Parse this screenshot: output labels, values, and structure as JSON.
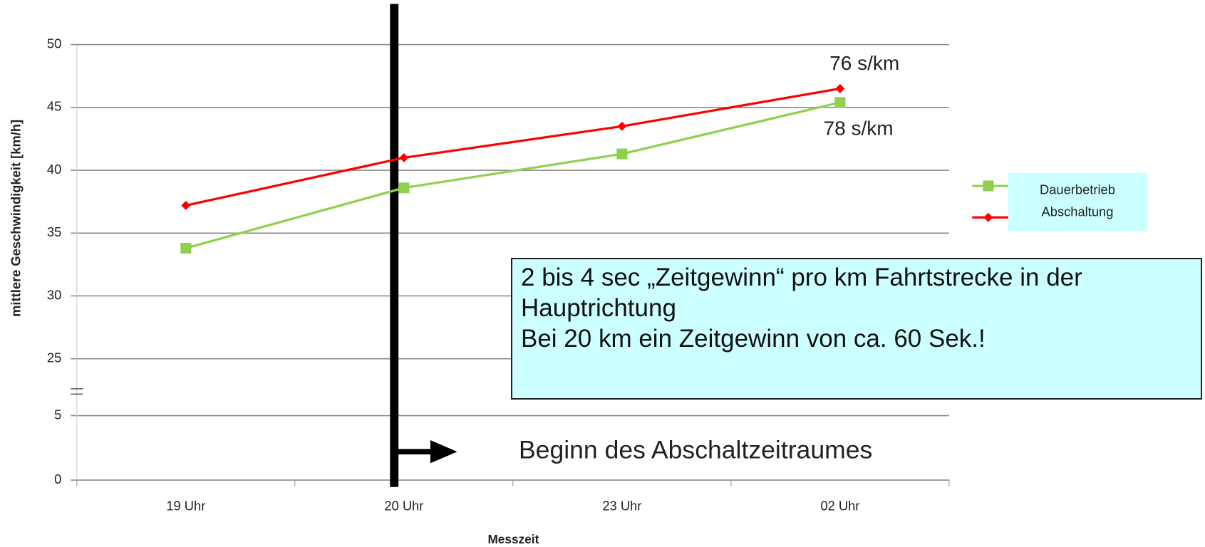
{
  "chart_data": {
    "type": "line",
    "categories": [
      "19 Uhr",
      "20 Uhr",
      "23 Uhr",
      "02 Uhr"
    ],
    "series": [
      {
        "name": "Dauerbetrieb",
        "color": "#8fd14f",
        "marker": "square",
        "values": [
          33.8,
          38.6,
          41.3,
          45.4
        ]
      },
      {
        "name": "Abschaltung",
        "color": "#ff0000",
        "marker": "diamond",
        "values": [
          37.2,
          41.0,
          43.5,
          46.5
        ]
      }
    ],
    "ylim": [
      0,
      50
    ],
    "yticks": [
      0,
      5,
      25,
      30,
      35,
      40,
      45,
      50
    ],
    "ybreak": [
      5,
      25
    ],
    "grid": true,
    "ylabel": "mittlere Geschwindigkeit [km/h]",
    "xlabel": "Messzeit",
    "annotations": {
      "top_label": "76 s/km",
      "bottom_label": "78 s/km",
      "marker_text": "Beginn des Abschaltzeitraumes",
      "box_text": [
        "2 bis 4 sec „Zeitgewinn“ pro km Fahrtstrecke in der Hauptrichtung",
        "Bei 20 km ein Zeitgewinn von ca. 60 Sek.!"
      ]
    }
  }
}
